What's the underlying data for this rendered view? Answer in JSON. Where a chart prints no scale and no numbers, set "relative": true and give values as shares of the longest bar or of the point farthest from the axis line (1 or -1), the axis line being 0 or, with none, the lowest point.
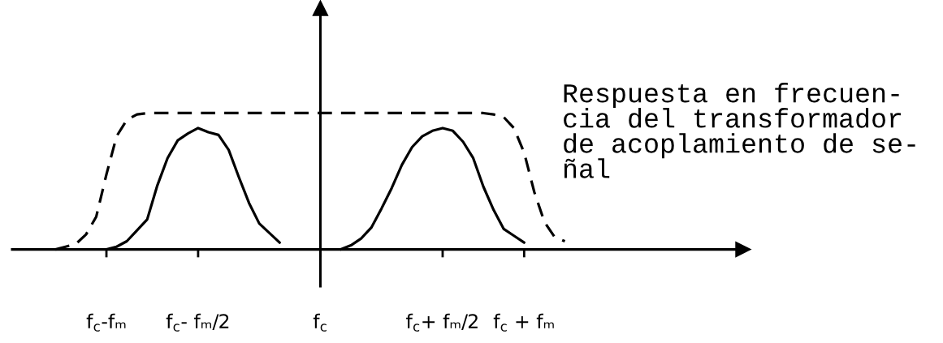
{
  "chart_data": {
    "type": "line",
    "relative": true,
    "tick_labels": "x",
    "categories": [
      null,
      null,
      null,
      null,
      null,
      "f$_{c}$-fₘ",
      null,
      null,
      null,
      null,
      null,
      null,
      null,
      null,
      "f$_{c}$- fₘ/2",
      null,
      null,
      null,
      null,
      null,
      null,
      null,
      null,
      null,
      null,
      null,
      "f$_{c}$",
      null,
      null,
      null,
      null,
      null,
      null,
      null,
      null,
      null,
      null,
      null,
      "f$_{c}$+ fₘ/2",
      null,
      null,
      null,
      null,
      null,
      null,
      null,
      "f$_{c}$ + fₘ",
      null,
      null,
      null,
      null
    ],
    "series": [
      {
        "color": "#000000",
        "line_style": "solid",
        "values": [
          null,
          null,
          null,
          null,
          null,
          0,
          0.02,
          0.06,
          0.14,
          0.22,
          0.47,
          0.67,
          0.8,
          0.85,
          0.89,
          0.86,
          0.84,
          0.73,
          0.53,
          0.34,
          0.19,
          0.12,
          0.05,
          null,
          null,
          null,
          null,
          null,
          0,
          0.03,
          0.08,
          0.16,
          0.3,
          0.45,
          0.62,
          0.75,
          0.83,
          0.87,
          0.89,
          0.87,
          0.79,
          0.67,
          0.46,
          0.29,
          0.15,
          0.1,
          0.05,
          null,
          null,
          null,
          null
        ]
      },
      {
        "color": "#000000",
        "line_style": "dashed",
        "values": [
          0,
          0.02,
          0.04,
          0.11,
          0.24,
          0.55,
          0.83,
          0.95,
          0.99,
          1,
          1,
          1,
          1,
          1,
          1,
          1,
          1,
          1,
          1,
          1,
          1,
          1,
          1,
          1,
          1,
          1,
          1,
          1,
          1,
          1,
          1,
          1,
          1,
          1,
          1,
          1,
          1,
          1,
          1,
          1,
          1,
          1,
          1,
          0.99,
          0.97,
          0.89,
          0.71,
          0.42,
          0.2,
          0.09,
          0.06
        ]
      }
    ],
    "annotations": [
      "Respuesta en frecuen-\ncia del transformador\nde acoplamiento de se-\nñal"
    ]
  }
}
